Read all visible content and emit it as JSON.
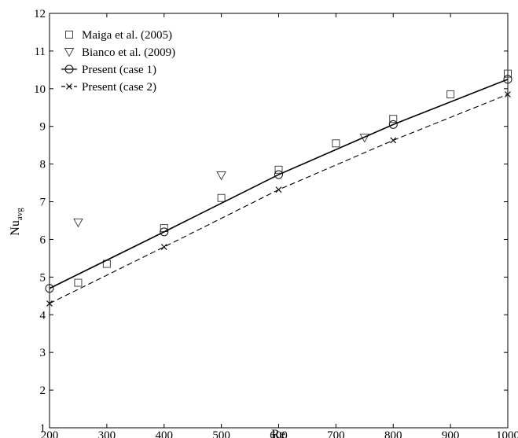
{
  "chart_data": {
    "type": "scatter",
    "xlabel": "Re",
    "ylabel": "Nu",
    "ylabel_sub": "avg",
    "xlim": [
      200,
      1000
    ],
    "ylim": [
      1,
      12
    ],
    "xticks": [
      200,
      300,
      400,
      500,
      600,
      700,
      800,
      900,
      1000
    ],
    "yticks": [
      1,
      2,
      3,
      4,
      5,
      6,
      7,
      8,
      9,
      10,
      11,
      12
    ],
    "grid": false,
    "legend_position": "top-left",
    "series": [
      {
        "name": "Maiga et al. (2005)",
        "marker": "square",
        "line": "none",
        "x": [
          250,
          300,
          400,
          500,
          600,
          700,
          800,
          900,
          1000
        ],
        "y": [
          4.85,
          5.35,
          6.3,
          7.1,
          7.85,
          8.55,
          9.2,
          9.85,
          10.4
        ]
      },
      {
        "name": "Bianco et al. (2009)",
        "marker": "triangle-down",
        "line": "none",
        "x": [
          250,
          500,
          750
        ],
        "y": [
          6.45,
          7.7,
          8.7
        ]
      },
      {
        "name": "Present (case 1)",
        "marker": "circle",
        "line": "solid",
        "x": [
          200,
          400,
          600,
          800,
          1000
        ],
        "y": [
          4.7,
          6.2,
          7.72,
          9.05,
          10.25
        ]
      },
      {
        "name": "Present (case 2)",
        "marker": "cross",
        "line": "dashed",
        "x": [
          200,
          400,
          600,
          800,
          1000
        ],
        "y": [
          4.3,
          5.8,
          7.32,
          8.63,
          9.85
        ]
      }
    ]
  }
}
